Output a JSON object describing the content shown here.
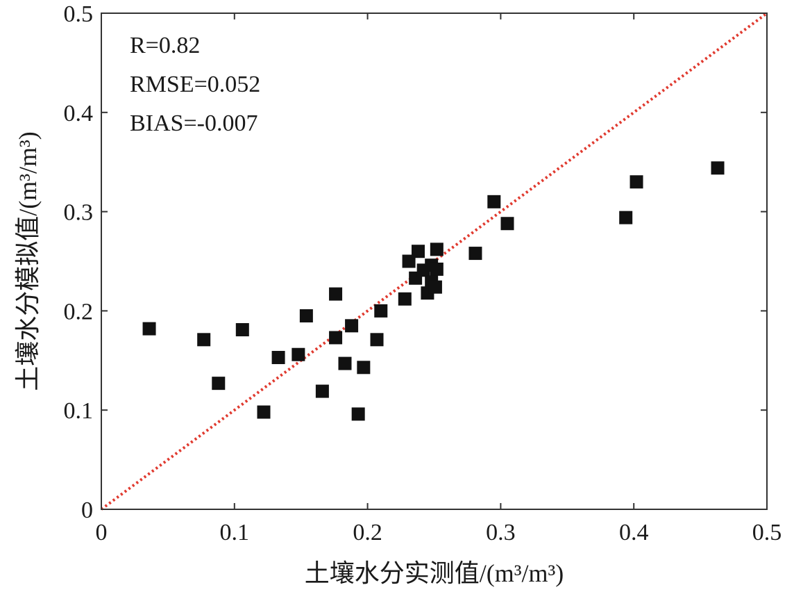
{
  "chart_data": {
    "type": "scatter",
    "title": "",
    "xlabel": "土壤水分实测值/(m³/m³)",
    "ylabel": "土壤水分模拟值/(m³/m³)",
    "xlim": [
      0,
      0.5
    ],
    "ylim": [
      0,
      0.5
    ],
    "xticks": [
      "0",
      "0.1",
      "0.2",
      "0.3",
      "0.4",
      "0.5"
    ],
    "yticks": [
      "0",
      "0.1",
      "0.2",
      "0.3",
      "0.4",
      "0.5"
    ],
    "grid": false,
    "reference_line": {
      "type": "1:1",
      "color": "#e03a2f",
      "style": "dotted"
    },
    "marker": {
      "shape": "square",
      "color": "#111111"
    },
    "annotations": [
      "R=0.82",
      "RMSE=0.052",
      "BIAS=-0.007"
    ],
    "points": [
      {
        "x": 0.036,
        "y": 0.182
      },
      {
        "x": 0.077,
        "y": 0.171
      },
      {
        "x": 0.088,
        "y": 0.127
      },
      {
        "x": 0.106,
        "y": 0.181
      },
      {
        "x": 0.122,
        "y": 0.098
      },
      {
        "x": 0.133,
        "y": 0.153
      },
      {
        "x": 0.148,
        "y": 0.156
      },
      {
        "x": 0.154,
        "y": 0.195
      },
      {
        "x": 0.166,
        "y": 0.119
      },
      {
        "x": 0.176,
        "y": 0.217
      },
      {
        "x": 0.176,
        "y": 0.173
      },
      {
        "x": 0.183,
        "y": 0.147
      },
      {
        "x": 0.188,
        "y": 0.185
      },
      {
        "x": 0.193,
        "y": 0.096
      },
      {
        "x": 0.197,
        "y": 0.143
      },
      {
        "x": 0.207,
        "y": 0.171
      },
      {
        "x": 0.21,
        "y": 0.2
      },
      {
        "x": 0.228,
        "y": 0.212
      },
      {
        "x": 0.231,
        "y": 0.25
      },
      {
        "x": 0.236,
        "y": 0.233
      },
      {
        "x": 0.238,
        "y": 0.26
      },
      {
        "x": 0.242,
        "y": 0.241
      },
      {
        "x": 0.245,
        "y": 0.218
      },
      {
        "x": 0.248,
        "y": 0.229
      },
      {
        "x": 0.248,
        "y": 0.246
      },
      {
        "x": 0.251,
        "y": 0.224
      },
      {
        "x": 0.252,
        "y": 0.242
      },
      {
        "x": 0.252,
        "y": 0.262
      },
      {
        "x": 0.281,
        "y": 0.258
      },
      {
        "x": 0.295,
        "y": 0.31
      },
      {
        "x": 0.305,
        "y": 0.288
      },
      {
        "x": 0.394,
        "y": 0.294
      },
      {
        "x": 0.402,
        "y": 0.33
      },
      {
        "x": 0.463,
        "y": 0.344
      }
    ]
  }
}
